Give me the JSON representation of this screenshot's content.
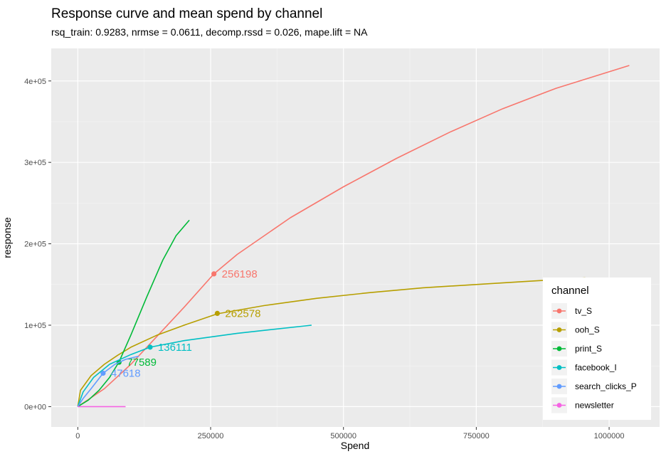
{
  "chart_data": {
    "type": "line",
    "title": "Response curve and mean spend by channel",
    "subtitle": "rsq_train: 0.9283, nrmse = 0.0611, decomp.rssd = 0.026, mape.lift = NA",
    "xlabel": "Spend",
    "ylabel": "response",
    "xlim": [
      -50000,
      1095000
    ],
    "ylim": [
      -25000,
      440000
    ],
    "x_ticks": [
      0,
      250000,
      500000,
      750000,
      1000000
    ],
    "x_tick_labels": [
      "0",
      "250000",
      "500000",
      "750000",
      "1000000"
    ],
    "y_ticks": [
      0,
      100000,
      200000,
      300000,
      400000
    ],
    "y_tick_labels": [
      "0e+00",
      "1e+05",
      "2e+05",
      "3e+05",
      "4e+05"
    ],
    "grid": true,
    "legend": {
      "title": "channel",
      "position": "right-bottom"
    },
    "series": [
      {
        "name": "tv_S",
        "color": "#F8766D",
        "curve": [
          [
            0,
            0
          ],
          [
            50000,
            22000
          ],
          [
            100000,
            52000
          ],
          [
            150000,
            87000
          ],
          [
            200000,
            122000
          ],
          [
            256198,
            163000
          ],
          [
            300000,
            187000
          ],
          [
            400000,
            232000
          ],
          [
            500000,
            270000
          ],
          [
            600000,
            305000
          ],
          [
            700000,
            337000
          ],
          [
            800000,
            366000
          ],
          [
            900000,
            391000
          ],
          [
            1038000,
            419000
          ]
        ],
        "mean_point": {
          "x": 256198,
          "y": 163000,
          "label": "256198"
        }
      },
      {
        "name": "ooh_S",
        "color": "#B79F00",
        "curve": [
          [
            0,
            0
          ],
          [
            5000,
            20000
          ],
          [
            25000,
            38000
          ],
          [
            50000,
            52000
          ],
          [
            75000,
            63000
          ],
          [
            100000,
            73000
          ],
          [
            150000,
            88000
          ],
          [
            200000,
            100000
          ],
          [
            262578,
            114000
          ],
          [
            350000,
            124000
          ],
          [
            450000,
            133000
          ],
          [
            550000,
            140000
          ],
          [
            650000,
            146000
          ],
          [
            750000,
            150000
          ],
          [
            850000,
            154000
          ],
          [
            955000,
            158000
          ]
        ],
        "mean_point": {
          "x": 262578,
          "y": 114500,
          "label": "262578"
        }
      },
      {
        "name": "print_S",
        "color": "#00BA38",
        "curve": [
          [
            0,
            0
          ],
          [
            20000,
            8000
          ],
          [
            40000,
            20000
          ],
          [
            60000,
            36000
          ],
          [
            77589,
            55000
          ],
          [
            100000,
            88000
          ],
          [
            130000,
            135000
          ],
          [
            160000,
            180000
          ],
          [
            185000,
            210000
          ],
          [
            210000,
            229000
          ]
        ],
        "mean_point": {
          "x": 77589,
          "y": 54500,
          "label": "77589"
        }
      },
      {
        "name": "facebook_I",
        "color": "#00BFC4",
        "curve": [
          [
            0,
            0
          ],
          [
            10000,
            18000
          ],
          [
            30000,
            36000
          ],
          [
            60000,
            52000
          ],
          [
            100000,
            64000
          ],
          [
            136111,
            73000
          ],
          [
            200000,
            81000
          ],
          [
            300000,
            90000
          ],
          [
            440000,
            100000
          ]
        ],
        "mean_point": {
          "x": 136111,
          "y": 73000,
          "label": "136111"
        }
      },
      {
        "name": "search_clicks_P",
        "color": "#619CFF",
        "curve": [
          [
            0,
            0
          ],
          [
            10000,
            10000
          ],
          [
            25000,
            22000
          ],
          [
            47618,
            41000
          ],
          [
            70000,
            52000
          ],
          [
            90000,
            58000
          ],
          [
            115000,
            62000
          ]
        ],
        "mean_point": {
          "x": 47618,
          "y": 41000,
          "label": "47618"
        }
      },
      {
        "name": "newsletter",
        "color": "#F564E3",
        "curve": [
          [
            0,
            0
          ],
          [
            90000,
            0
          ]
        ],
        "mean_point": null
      }
    ]
  }
}
